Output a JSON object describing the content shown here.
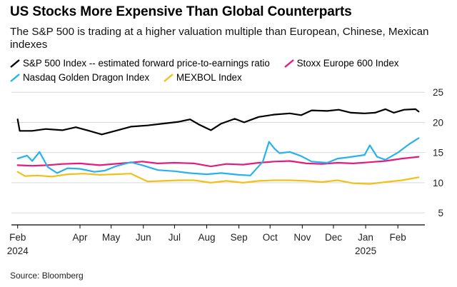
{
  "title": "US Stocks More Expensive Than Global Counterparts",
  "subtitle": "The S&P 500 is trading at a higher valuation multiple than European, Chinese, Mexican indexes",
  "source": "Source: Bloomberg",
  "chart_data": {
    "type": "line",
    "title": "US Stocks More Expensive Than Global Counterparts",
    "xlabel": "",
    "ylabel": "",
    "ylim": [
      3,
      25.5
    ],
    "yticks": [
      5,
      10,
      15,
      20,
      25
    ],
    "x_tick_labels": [
      {
        "label": "Feb",
        "year": "2024",
        "date": "2024-02-01"
      },
      {
        "label": "Apr",
        "year": "",
        "date": "2024-04-01"
      },
      {
        "label": "May",
        "year": "",
        "date": "2024-05-01"
      },
      {
        "label": "Jun",
        "year": "",
        "date": "2024-06-01"
      },
      {
        "label": "Jul",
        "year": "",
        "date": "2024-07-01"
      },
      {
        "label": "Aug",
        "year": "",
        "date": "2024-08-01"
      },
      {
        "label": "Sep",
        "year": "",
        "date": "2024-09-01"
      },
      {
        "label": "Oct",
        "year": "",
        "date": "2024-10-01"
      },
      {
        "label": "Nov",
        "year": "",
        "date": "2024-11-01"
      },
      {
        "label": "Dec",
        "year": "",
        "date": "2024-12-01"
      },
      {
        "label": "Jan",
        "year": "2025",
        "date": "2025-01-01"
      },
      {
        "label": "Feb",
        "year": "",
        "date": "2025-02-01"
      }
    ],
    "xrange": [
      "2024-01-26",
      "2025-02-27"
    ],
    "grid": true,
    "legend_position": "top-left",
    "series": [
      {
        "name": "S&P 500 Index -- estimated forward price-to-earnings ratio",
        "color": "#000000",
        "points": [
          [
            "2024-02-01",
            20.5
          ],
          [
            "2024-02-03",
            18.6
          ],
          [
            "2024-02-15",
            18.6
          ],
          [
            "2024-02-28",
            18.9
          ],
          [
            "2024-03-15",
            18.7
          ],
          [
            "2024-03-28",
            19.2
          ],
          [
            "2024-04-10",
            18.6
          ],
          [
            "2024-04-22",
            18.0
          ],
          [
            "2024-05-05",
            18.6
          ],
          [
            "2024-05-20",
            19.3
          ],
          [
            "2024-06-05",
            19.5
          ],
          [
            "2024-06-20",
            19.8
          ],
          [
            "2024-07-05",
            20.1
          ],
          [
            "2024-07-16",
            20.5
          ],
          [
            "2024-07-25",
            19.6
          ],
          [
            "2024-08-05",
            18.7
          ],
          [
            "2024-08-15",
            19.8
          ],
          [
            "2024-08-28",
            20.6
          ],
          [
            "2024-09-06",
            20.0
          ],
          [
            "2024-09-20",
            20.9
          ],
          [
            "2024-10-05",
            21.3
          ],
          [
            "2024-10-20",
            21.5
          ],
          [
            "2024-10-31",
            21.2
          ],
          [
            "2024-11-10",
            22.0
          ],
          [
            "2024-11-25",
            21.9
          ],
          [
            "2024-12-06",
            22.1
          ],
          [
            "2024-12-18",
            21.6
          ],
          [
            "2024-12-31",
            21.5
          ],
          [
            "2025-01-10",
            21.6
          ],
          [
            "2025-01-20",
            22.2
          ],
          [
            "2025-01-28",
            21.6
          ],
          [
            "2025-02-07",
            22.1
          ],
          [
            "2025-02-18",
            22.2
          ],
          [
            "2025-02-21",
            21.8
          ]
        ]
      },
      {
        "name": "Stoxx Europe 600 Index",
        "color": "#e6197f",
        "points": [
          [
            "2024-02-01",
            12.9
          ],
          [
            "2024-02-15",
            12.8
          ],
          [
            "2024-03-01",
            12.9
          ],
          [
            "2024-03-15",
            13.1
          ],
          [
            "2024-04-01",
            13.2
          ],
          [
            "2024-04-20",
            12.9
          ],
          [
            "2024-05-10",
            13.2
          ],
          [
            "2024-05-31",
            13.5
          ],
          [
            "2024-06-15",
            13.2
          ],
          [
            "2024-07-01",
            13.3
          ],
          [
            "2024-07-20",
            13.2
          ],
          [
            "2024-08-05",
            12.7
          ],
          [
            "2024-08-20",
            13.1
          ],
          [
            "2024-09-05",
            13.0
          ],
          [
            "2024-09-20",
            13.3
          ],
          [
            "2024-10-05",
            13.5
          ],
          [
            "2024-10-20",
            13.6
          ],
          [
            "2024-11-05",
            13.2
          ],
          [
            "2024-11-20",
            13.1
          ],
          [
            "2024-12-05",
            13.3
          ],
          [
            "2024-12-20",
            13.2
          ],
          [
            "2025-01-05",
            13.4
          ],
          [
            "2025-01-20",
            13.6
          ],
          [
            "2025-02-05",
            14.0
          ],
          [
            "2025-02-21",
            14.3
          ]
        ]
      },
      {
        "name": "Nasdaq Golden Dragon Index",
        "color": "#26b2ed",
        "points": [
          [
            "2024-02-01",
            14.0
          ],
          [
            "2024-02-10",
            14.5
          ],
          [
            "2024-02-15",
            13.6
          ],
          [
            "2024-02-22",
            15.1
          ],
          [
            "2024-03-01",
            12.6
          ],
          [
            "2024-03-10",
            11.6
          ],
          [
            "2024-03-20",
            12.4
          ],
          [
            "2024-04-01",
            12.3
          ],
          [
            "2024-04-15",
            11.8
          ],
          [
            "2024-04-25",
            12.0
          ],
          [
            "2024-05-05",
            12.7
          ],
          [
            "2024-05-20",
            13.4
          ],
          [
            "2024-05-31",
            12.9
          ],
          [
            "2024-06-15",
            12.1
          ],
          [
            "2024-07-01",
            11.9
          ],
          [
            "2024-07-15",
            11.6
          ],
          [
            "2024-08-01",
            11.4
          ],
          [
            "2024-08-15",
            11.6
          ],
          [
            "2024-09-01",
            11.3
          ],
          [
            "2024-09-12",
            11.2
          ],
          [
            "2024-09-24",
            13.5
          ],
          [
            "2024-09-30",
            16.8
          ],
          [
            "2024-10-05",
            15.7
          ],
          [
            "2024-10-10",
            14.9
          ],
          [
            "2024-10-20",
            15.1
          ],
          [
            "2024-10-31",
            14.4
          ],
          [
            "2024-11-10",
            13.5
          ],
          [
            "2024-11-25",
            13.3
          ],
          [
            "2024-12-05",
            14.0
          ],
          [
            "2024-12-15",
            14.2
          ],
          [
            "2024-12-31",
            14.6
          ],
          [
            "2025-01-05",
            16.2
          ],
          [
            "2025-01-12",
            14.3
          ],
          [
            "2025-01-20",
            13.8
          ],
          [
            "2025-02-01",
            15.0
          ],
          [
            "2025-02-12",
            16.4
          ],
          [
            "2025-02-21",
            17.4
          ]
        ]
      },
      {
        "name": "MEXBOL Index",
        "color": "#f2c01a",
        "points": [
          [
            "2024-02-01",
            11.8
          ],
          [
            "2024-02-08",
            11.1
          ],
          [
            "2024-02-20",
            11.2
          ],
          [
            "2024-03-05",
            11.0
          ],
          [
            "2024-03-20",
            11.4
          ],
          [
            "2024-04-05",
            11.5
          ],
          [
            "2024-04-20",
            11.3
          ],
          [
            "2024-05-05",
            11.4
          ],
          [
            "2024-05-20",
            11.5
          ],
          [
            "2024-06-05",
            10.2
          ],
          [
            "2024-06-20",
            10.3
          ],
          [
            "2024-07-05",
            10.4
          ],
          [
            "2024-07-20",
            10.4
          ],
          [
            "2024-08-05",
            10.0
          ],
          [
            "2024-08-20",
            10.3
          ],
          [
            "2024-09-05",
            10.0
          ],
          [
            "2024-09-20",
            10.3
          ],
          [
            "2024-10-05",
            10.4
          ],
          [
            "2024-10-20",
            10.4
          ],
          [
            "2024-11-05",
            10.3
          ],
          [
            "2024-11-20",
            10.1
          ],
          [
            "2024-12-05",
            10.4
          ],
          [
            "2024-12-20",
            9.9
          ],
          [
            "2025-01-05",
            9.8
          ],
          [
            "2025-01-20",
            10.1
          ],
          [
            "2025-02-05",
            10.4
          ],
          [
            "2025-02-21",
            10.9
          ]
        ]
      }
    ]
  }
}
